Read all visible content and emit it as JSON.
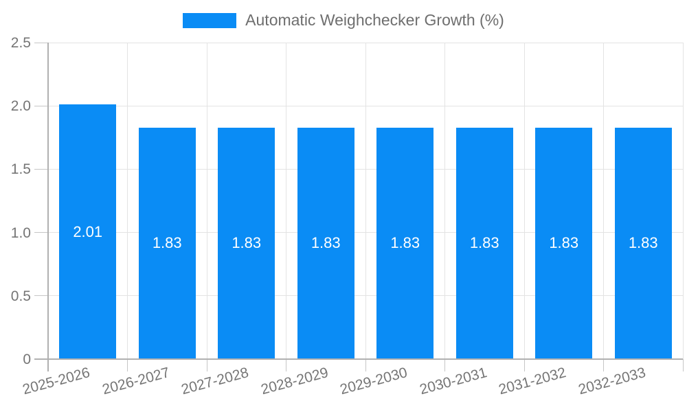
{
  "legend": {
    "label": "Automatic Weighchecker Growth (%)"
  },
  "chart_data": {
    "type": "bar",
    "title": "",
    "series_name": "Automatic Weighchecker Growth (%)",
    "categories": [
      "2025-2026",
      "2026-2027",
      "2027-2028",
      "2028-2029",
      "2029-2030",
      "2030-2031",
      "2031-2032",
      "2032-2033"
    ],
    "values": [
      2.01,
      1.83,
      1.83,
      1.83,
      1.83,
      1.83,
      1.83,
      1.83
    ],
    "bar_labels": [
      "2.01",
      "1.83",
      "1.83",
      "1.83",
      "1.83",
      "1.83",
      "1.83",
      "1.83"
    ],
    "xlabel": "",
    "ylabel": "",
    "ylim": [
      0,
      2.5
    ],
    "yticks": [
      0,
      0.5,
      1,
      1.5,
      2,
      2.5
    ],
    "ytick_labels": [
      "0",
      "0.5",
      "1.0",
      "1.5",
      "2.0",
      "2.5"
    ],
    "grid": true,
    "legend_position": "top-center",
    "x_label_rotation_deg": -15,
    "colors": {
      "bar": "#0a8cf5",
      "bar_label": "#ffffff",
      "axis": "#b0b0b0",
      "grid": "#e3e3e3",
      "tick": "#c6c6c6",
      "axis_text": "#757575",
      "legend_text": "#6e6e6e",
      "background": "#ffffff"
    }
  }
}
